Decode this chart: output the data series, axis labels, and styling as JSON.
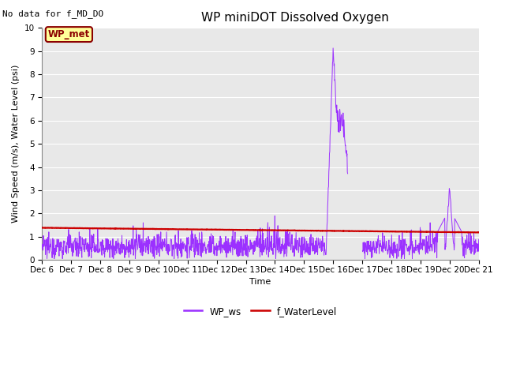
{
  "title": "WP miniDOT Dissolved Oxygen",
  "no_data_text": "No data for f_MD_DO",
  "ylabel": "Wind Speed (m/s), Water Level (psi)",
  "xlabel": "Time",
  "ylim": [
    0.0,
    10.0
  ],
  "yticks": [
    0.0,
    1.0,
    2.0,
    3.0,
    4.0,
    5.0,
    6.0,
    7.0,
    8.0,
    9.0,
    10.0
  ],
  "xlim": [
    6,
    21
  ],
  "wp_ws_color": "#9B30FF",
  "f_wl_color": "#CC0000",
  "wp_ws_lw": 0.7,
  "f_wl_lw": 1.6,
  "legend_wp_ws": "WP_ws",
  "legend_f_wl": "f_WaterLevel",
  "annotation_box_text": "WP_met",
  "annotation_box_facecolor": "#FFFF99",
  "annotation_box_edgecolor": "#8B0000",
  "bg_color": "#E8E8E8",
  "grid_color": "#FFFFFF",
  "title_fontsize": 11,
  "label_fontsize": 8,
  "tick_fontsize": 7.5,
  "legend_fontsize": 8.5,
  "no_data_fontsize": 8
}
